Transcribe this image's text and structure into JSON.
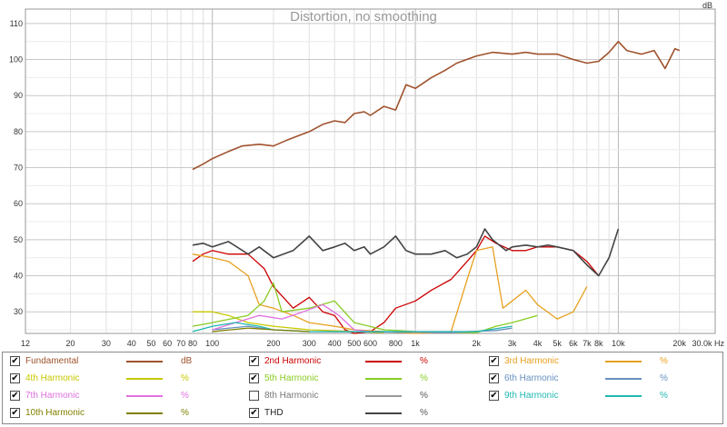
{
  "chart_data": {
    "type": "line",
    "title": "Distortion, no smoothing",
    "ylabel": "dB",
    "xunit": "Hz",
    "xscale": "log",
    "xlim": [
      12,
      30000
    ],
    "ylim": [
      24,
      114
    ],
    "grid": true,
    "x_ticks": [
      {
        "v": 12,
        "label": "12"
      },
      {
        "v": 20,
        "label": "20"
      },
      {
        "v": 30,
        "label": "30"
      },
      {
        "v": 40,
        "label": "40"
      },
      {
        "v": 50,
        "label": "50"
      },
      {
        "v": 60,
        "label": "60"
      },
      {
        "v": 70,
        "label": "70"
      },
      {
        "v": 80,
        "label": "80"
      },
      {
        "v": 100,
        "label": "100"
      },
      {
        "v": 200,
        "label": "200"
      },
      {
        "v": 300,
        "label": "300"
      },
      {
        "v": 400,
        "label": "400"
      },
      {
        "v": 500,
        "label": "500"
      },
      {
        "v": 600,
        "label": "600"
      },
      {
        "v": 800,
        "label": "800"
      },
      {
        "v": 1000,
        "label": "1k"
      },
      {
        "v": 2000,
        "label": "2k"
      },
      {
        "v": 3000,
        "label": "3k"
      },
      {
        "v": 4000,
        "label": "4k"
      },
      {
        "v": 5000,
        "label": "5k"
      },
      {
        "v": 6000,
        "label": "6k"
      },
      {
        "v": 7000,
        "label": "7k"
      },
      {
        "v": 8000,
        "label": "8k"
      },
      {
        "v": 10000,
        "label": "10k"
      },
      {
        "v": 20000,
        "label": "20k"
      },
      {
        "v": 30000,
        "label": "30.0k Hz"
      }
    ],
    "y_ticks": [
      {
        "v": 30,
        "label": "30"
      },
      {
        "v": 40,
        "label": "40"
      },
      {
        "v": 50,
        "label": "50"
      },
      {
        "v": 60,
        "label": "60"
      },
      {
        "v": 70,
        "label": "70"
      },
      {
        "v": 80,
        "label": "80"
      },
      {
        "v": 90,
        "label": "90"
      },
      {
        "v": 100,
        "label": "100"
      },
      {
        "v": 110,
        "label": "110"
      }
    ],
    "series": [
      {
        "name": "Fundamental",
        "unit": "dB",
        "color": "#a0522d",
        "checked": true,
        "points": [
          [
            80,
            69.5
          ],
          [
            90,
            71
          ],
          [
            100,
            72.5
          ],
          [
            120,
            74.5
          ],
          [
            140,
            76
          ],
          [
            170,
            76.5
          ],
          [
            200,
            76
          ],
          [
            230,
            77.5
          ],
          [
            270,
            79
          ],
          [
            300,
            80
          ],
          [
            350,
            82
          ],
          [
            400,
            83
          ],
          [
            450,
            82.5
          ],
          [
            500,
            85
          ],
          [
            560,
            85.5
          ],
          [
            600,
            84.5
          ],
          [
            700,
            87
          ],
          [
            800,
            86
          ],
          [
            900,
            93
          ],
          [
            1000,
            92
          ],
          [
            1200,
            95
          ],
          [
            1400,
            97
          ],
          [
            1600,
            99
          ],
          [
            2000,
            101
          ],
          [
            2400,
            102
          ],
          [
            3000,
            101.5
          ],
          [
            3500,
            102
          ],
          [
            4000,
            101.5
          ],
          [
            5000,
            101.5
          ],
          [
            6000,
            100
          ],
          [
            7000,
            99
          ],
          [
            8000,
            99.5
          ],
          [
            9000,
            102
          ],
          [
            10000,
            105
          ],
          [
            11000,
            102.5
          ],
          [
            13000,
            101.5
          ],
          [
            15000,
            102.5
          ],
          [
            17000,
            97.5
          ],
          [
            19000,
            103
          ],
          [
            20000,
            102.5
          ]
        ]
      },
      {
        "name": "2nd Harmonic",
        "unit": "%",
        "color": "#cc0000",
        "checked": true,
        "points": [
          [
            80,
            44
          ],
          [
            90,
            46
          ],
          [
            100,
            47
          ],
          [
            120,
            46
          ],
          [
            150,
            46
          ],
          [
            180,
            42
          ],
          [
            200,
            37
          ],
          [
            250,
            31
          ],
          [
            300,
            34
          ],
          [
            350,
            30
          ],
          [
            400,
            29
          ],
          [
            450,
            25
          ],
          [
            500,
            24
          ],
          [
            600,
            24.5
          ],
          [
            700,
            27
          ],
          [
            800,
            31
          ],
          [
            1000,
            33
          ],
          [
            1200,
            36
          ],
          [
            1500,
            39
          ],
          [
            1800,
            44
          ],
          [
            2000,
            47
          ],
          [
            2200,
            51
          ],
          [
            2500,
            49
          ],
          [
            3000,
            47
          ],
          [
            3500,
            47
          ],
          [
            4000,
            48
          ],
          [
            5000,
            48
          ],
          [
            6000,
            47
          ],
          [
            7000,
            44
          ],
          [
            8000,
            40
          ]
        ]
      },
      {
        "name": "3rd Harmonic",
        "unit": "%",
        "color": "#e8a020",
        "checked": true,
        "points": [
          [
            80,
            46
          ],
          [
            100,
            45
          ],
          [
            120,
            44
          ],
          [
            150,
            40
          ],
          [
            170,
            32
          ],
          [
            200,
            31
          ],
          [
            250,
            29
          ],
          [
            300,
            27
          ],
          [
            400,
            26
          ],
          [
            500,
            25
          ],
          [
            1000,
            24
          ],
          [
            1500,
            24.5
          ],
          [
            1800,
            39
          ],
          [
            2000,
            47
          ],
          [
            2400,
            48
          ],
          [
            2700,
            31
          ],
          [
            3000,
            33
          ],
          [
            3500,
            36
          ],
          [
            4000,
            32
          ],
          [
            5000,
            28
          ],
          [
            6000,
            30
          ],
          [
            7000,
            37
          ]
        ]
      },
      {
        "name": "4th Harmonic",
        "unit": "%",
        "color": "#c8c800",
        "checked": true,
        "points": [
          [
            80,
            30
          ],
          [
            100,
            30
          ],
          [
            120,
            29
          ],
          [
            150,
            27
          ],
          [
            200,
            26
          ],
          [
            300,
            25
          ],
          [
            500,
            24.5
          ],
          [
            700,
            24.2
          ]
        ]
      },
      {
        "name": "5th Harmonic",
        "unit": "%",
        "color": "#88cc22",
        "checked": true,
        "points": [
          [
            80,
            26
          ],
          [
            100,
            27
          ],
          [
            150,
            29
          ],
          [
            180,
            33
          ],
          [
            200,
            38
          ],
          [
            220,
            30
          ],
          [
            300,
            31
          ],
          [
            400,
            33
          ],
          [
            500,
            27
          ],
          [
            700,
            25
          ],
          [
            1000,
            24.5
          ],
          [
            2000,
            24.2
          ],
          [
            2500,
            26
          ],
          [
            3000,
            27
          ],
          [
            4000,
            29
          ]
        ]
      },
      {
        "name": "6th Harmonic",
        "unit": "%",
        "color": "#6690c0",
        "checked": true,
        "points": [
          [
            100,
            25
          ],
          [
            150,
            26
          ],
          [
            200,
            25
          ],
          [
            300,
            24.5
          ],
          [
            1500,
            24.3
          ],
          [
            2500,
            24.8
          ],
          [
            3000,
            25.5
          ]
        ]
      },
      {
        "name": "7th Harmonic",
        "unit": "%",
        "color": "#e070e0",
        "checked": true,
        "points": [
          [
            100,
            25
          ],
          [
            130,
            27
          ],
          [
            170,
            29
          ],
          [
            220,
            28
          ],
          [
            280,
            30
          ],
          [
            350,
            32
          ],
          [
            420,
            29
          ],
          [
            500,
            25
          ],
          [
            600,
            24.5
          ]
        ]
      },
      {
        "name": "8th Harmonic",
        "unit": "%",
        "color": "#999999",
        "checked": false,
        "points": [
          [
            100,
            24.5
          ],
          [
            200,
            25
          ],
          [
            300,
            24.5
          ]
        ]
      },
      {
        "name": "9th Harmonic",
        "unit": "%",
        "color": "#20b8b0",
        "checked": true,
        "points": [
          [
            80,
            24.5
          ],
          [
            100,
            26
          ],
          [
            130,
            27
          ],
          [
            170,
            26
          ],
          [
            200,
            25
          ],
          [
            300,
            24.5
          ],
          [
            2000,
            24.5
          ],
          [
            3000,
            26
          ]
        ]
      },
      {
        "name": "10th Harmonic",
        "unit": "%",
        "color": "#808000",
        "checked": true,
        "points": [
          [
            100,
            24.5
          ],
          [
            150,
            25.5
          ],
          [
            200,
            25
          ],
          [
            300,
            24.5
          ]
        ]
      },
      {
        "name": "THD",
        "unit": "%",
        "color": "#444444",
        "checked": true,
        "points": [
          [
            80,
            48.5
          ],
          [
            90,
            49
          ],
          [
            100,
            48
          ],
          [
            120,
            49.5
          ],
          [
            150,
            46
          ],
          [
            170,
            48
          ],
          [
            200,
            45
          ],
          [
            250,
            47
          ],
          [
            300,
            51
          ],
          [
            350,
            47
          ],
          [
            400,
            48
          ],
          [
            450,
            49
          ],
          [
            500,
            47
          ],
          [
            560,
            48
          ],
          [
            600,
            46
          ],
          [
            700,
            48
          ],
          [
            800,
            51
          ],
          [
            900,
            47
          ],
          [
            1000,
            46
          ],
          [
            1200,
            46
          ],
          [
            1400,
            47
          ],
          [
            1600,
            45
          ],
          [
            1800,
            46
          ],
          [
            2000,
            48
          ],
          [
            2200,
            53
          ],
          [
            2400,
            50
          ],
          [
            2800,
            47
          ],
          [
            3000,
            48
          ],
          [
            3500,
            48.5
          ],
          [
            4000,
            48
          ],
          [
            4500,
            48.5
          ],
          [
            5000,
            48
          ],
          [
            6000,
            47
          ],
          [
            7000,
            43
          ],
          [
            8000,
            40
          ],
          [
            9000,
            45
          ],
          [
            10000,
            53
          ]
        ]
      }
    ]
  }
}
